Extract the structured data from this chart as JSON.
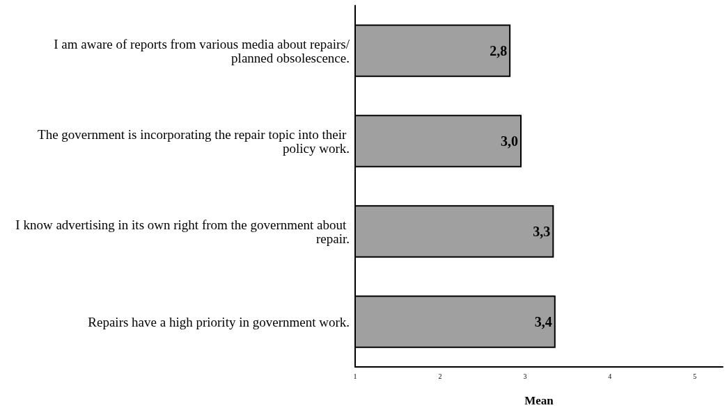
{
  "chart_data": {
    "type": "bar",
    "orientation": "horizontal",
    "xlabel": "Mean",
    "categories": [
      "I am aware of reports from various media about repairs/planned obsolescence.",
      "The government is incorporating the repair topic into their policy work.",
      "I know advertising in its own right from the government about repair.",
      "Repairs have a high priority in government work."
    ],
    "values": [
      2.83,
      2.96,
      3.34,
      3.36
    ],
    "value_labels": [
      "2,8",
      "3,0",
      "3,3",
      "3,4"
    ],
    "color": "#a0a0a0",
    "xlim": [
      1,
      5.33
    ],
    "xticks": [
      1,
      2,
      3,
      4,
      5
    ],
    "grid": false
  }
}
